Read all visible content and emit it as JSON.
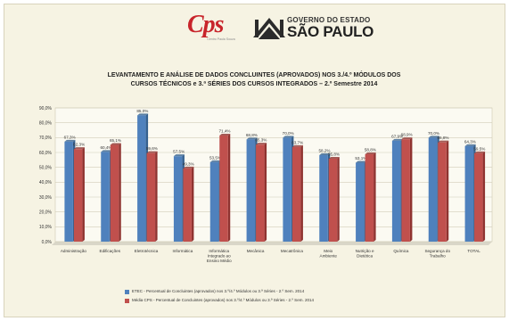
{
  "header": {
    "cps_logo_text": "Cps",
    "cps_logo_subtext": "Centro Paula Souza",
    "sp_line1": "GOVERNO DO ESTADO",
    "sp_line2": "SÃO PAULO"
  },
  "chart_data": {
    "type": "bar",
    "title_lines": [
      "LEVANTAMENTO  E ANÁLISE DE DADOS CONCLUINTES (APROVADOS) NOS 3./4.º MÓDULOS DOS",
      "CURSOS TÉCNICOS e 3.ª SÉRIES DOS CURSOS INTEGRADOS – 2.º Semestre 2014"
    ],
    "ylim": [
      0,
      90
    ],
    "yticks": [
      "0,0%",
      "10,0%",
      "20,0%",
      "30,0%",
      "40,0%",
      "50,0%",
      "60,0%",
      "70,0%",
      "80,0%",
      "90,0%"
    ],
    "grid": true,
    "categories": [
      [
        "Administração"
      ],
      [
        "Edificações"
      ],
      [
        "Eletrotécnica"
      ],
      [
        "Informática"
      ],
      [
        "Informática",
        "Integrado ao",
        "Ensino Médio"
      ],
      [
        "Mecânica"
      ],
      [
        "Mecatrônica"
      ],
      [
        "Meio",
        "Ambiente"
      ],
      [
        "Nutrição e",
        "Dietética"
      ],
      [
        "Química"
      ],
      [
        "Segurança do",
        "Trabalho"
      ],
      [
        "TOTAL"
      ]
    ],
    "series": [
      {
        "name": "ETEC - Percentual de Concluintes (aprovados) nos 3.º/4.º Módulos ou 3.ª Séries - 2.º Sem. 2014",
        "color": "#4f81bd",
        "values": [
          67.3,
          60.4,
          85.0,
          57.5,
          53.5,
          68.8,
          70.0,
          58.2,
          53.1,
          67.9,
          70.0,
          64.3
        ],
        "labels": [
          "67,3%",
          "60,4%",
          "85,0%",
          "57,5%",
          "53,5%",
          "68,8%",
          "70,0%",
          "58,2%",
          "53,1%",
          "67,9%",
          "70,0%",
          "64,3%"
        ]
      },
      {
        "name": "Média CPS - Percentual de Concluintes (aprovados) nos 3.º/4.º Módulos ou 3.ª Séries - 2.º Sem. 2014",
        "color": "#c0504d",
        "values": [
          62.3,
          65.1,
          59.6,
          49.3,
          71.4,
          65.3,
          63.7,
          55.8,
          58.8,
          68.9,
          66.8,
          59.5
        ],
        "labels": [
          "62,3%",
          "65,1%",
          "59,6%",
          "49,3%",
          "71,4%",
          "65,3%",
          "63,7%",
          "55,8%",
          "58,8%",
          "68,9%",
          "66,8%",
          "59,5%"
        ]
      }
    ]
  }
}
